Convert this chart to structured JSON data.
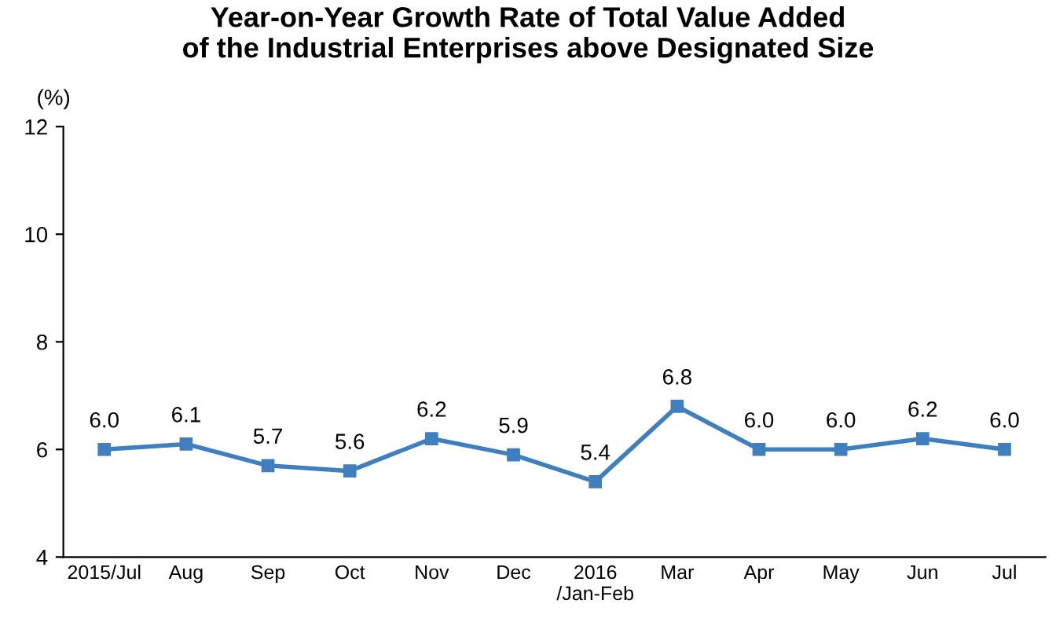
{
  "chart_data": {
    "type": "line",
    "title": "Year-on-Year Growth Rate of Total Value Added\nof the Industrial Enterprises above Designated Size",
    "ylabel": "(%)",
    "categories": [
      "2015/Jul",
      "Aug",
      "Sep",
      "Oct",
      "Nov",
      "Dec",
      "2016\n/Jan-Feb",
      "Mar",
      "Apr",
      "May",
      "Jun",
      "Jul"
    ],
    "series": [
      {
        "color": "#3f7fbf",
        "values": [
          6.0,
          6.1,
          5.7,
          5.6,
          6.2,
          5.9,
          5.4,
          6.8,
          6.0,
          6.0,
          6.2,
          6.0
        ],
        "value_labels": [
          "6.0",
          "6.1",
          "5.7",
          "5.6",
          "6.2",
          "5.9",
          "5.4",
          "6.8",
          "6.0",
          "6.0",
          "6.2",
          "6.0"
        ]
      }
    ],
    "ylim": [
      4,
      12
    ],
    "yticks": [
      4,
      6,
      8,
      10,
      12
    ],
    "grid": false,
    "legend": false,
    "marker": "square",
    "line_style": "solid"
  }
}
